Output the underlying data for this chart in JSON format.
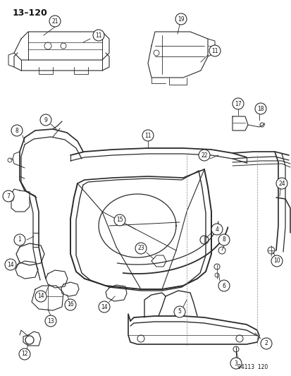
{
  "title": "13–120",
  "page_number": "94113  120",
  "background_color": "#ffffff",
  "line_color": "#2a2a2a",
  "text_color": "#111111",
  "figsize": [
    4.14,
    5.33
  ],
  "dpi": 100
}
